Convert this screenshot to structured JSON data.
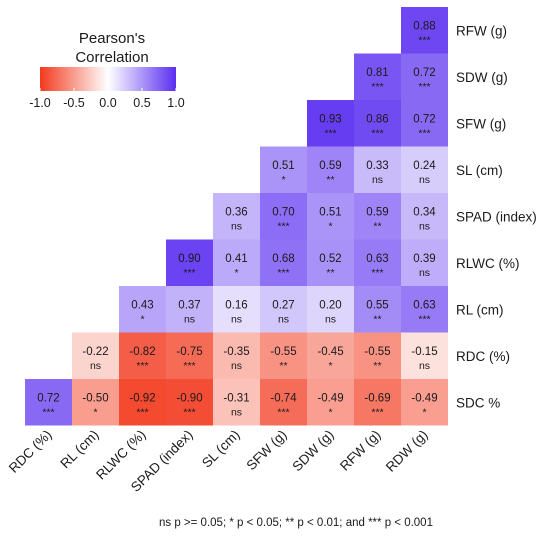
{
  "chart_data": {
    "type": "heatmap",
    "legend": {
      "title_lines": [
        "Pearson's",
        "Correlation"
      ],
      "ticks": [
        "-1.0",
        "-0.5",
        "0.0",
        "0.5",
        "1.0"
      ],
      "tick_values": [
        -1.0,
        -0.5,
        0.0,
        0.5,
        1.0
      ],
      "colors": {
        "low": "#f23a1e",
        "mid": "#ffffff",
        "high": "#5a2ef0"
      },
      "placement": "top-left"
    },
    "row_labels": [
      "RFW (g)",
      "SDW (g)",
      "SFW (g)",
      "SL (cm)",
      "SPAD (index)",
      "RLWC (%)",
      "RL (cm)",
      "RDC (%)",
      "SDC %"
    ],
    "col_labels": [
      "RDC (%)",
      "RL (cm)",
      "RLWC (%)",
      "SPAD (index)",
      "SL (cm)",
      "SFW (g)",
      "SDW (g)",
      "RFW (g)",
      "RDW (g)"
    ],
    "cells": [
      {
        "row": 0,
        "col": 8,
        "value": 0.88,
        "label": "0.88",
        "sig": "***"
      },
      {
        "row": 1,
        "col": 7,
        "value": 0.81,
        "label": "0.81",
        "sig": "***"
      },
      {
        "row": 1,
        "col": 8,
        "value": 0.72,
        "label": "0.72",
        "sig": "***"
      },
      {
        "row": 2,
        "col": 6,
        "value": 0.93,
        "label": "0.93",
        "sig": "***"
      },
      {
        "row": 2,
        "col": 7,
        "value": 0.86,
        "label": "0.86",
        "sig": "***"
      },
      {
        "row": 2,
        "col": 8,
        "value": 0.72,
        "label": "0.72",
        "sig": "***"
      },
      {
        "row": 3,
        "col": 5,
        "value": 0.51,
        "label": "0.51",
        "sig": "*"
      },
      {
        "row": 3,
        "col": 6,
        "value": 0.59,
        "label": "0.59",
        "sig": "**"
      },
      {
        "row": 3,
        "col": 7,
        "value": 0.33,
        "label": "0.33",
        "sig": "ns"
      },
      {
        "row": 3,
        "col": 8,
        "value": 0.24,
        "label": "0.24",
        "sig": "ns"
      },
      {
        "row": 4,
        "col": 4,
        "value": 0.36,
        "label": "0.36",
        "sig": "ns"
      },
      {
        "row": 4,
        "col": 5,
        "value": 0.7,
        "label": "0.70",
        "sig": "***"
      },
      {
        "row": 4,
        "col": 6,
        "value": 0.51,
        "label": "0.51",
        "sig": "*"
      },
      {
        "row": 4,
        "col": 7,
        "value": 0.59,
        "label": "0.59",
        "sig": "**"
      },
      {
        "row": 4,
        "col": 8,
        "value": 0.34,
        "label": "0.34",
        "sig": "ns"
      },
      {
        "row": 5,
        "col": 3,
        "value": 0.9,
        "label": "0.90",
        "sig": "***"
      },
      {
        "row": 5,
        "col": 4,
        "value": 0.41,
        "label": "0.41",
        "sig": "*"
      },
      {
        "row": 5,
        "col": 5,
        "value": 0.68,
        "label": "0.68",
        "sig": "***"
      },
      {
        "row": 5,
        "col": 6,
        "value": 0.52,
        "label": "0.52",
        "sig": "**"
      },
      {
        "row": 5,
        "col": 7,
        "value": 0.63,
        "label": "0.63",
        "sig": "***"
      },
      {
        "row": 5,
        "col": 8,
        "value": 0.39,
        "label": "0.39",
        "sig": "ns"
      },
      {
        "row": 6,
        "col": 2,
        "value": 0.43,
        "label": "0.43",
        "sig": "*"
      },
      {
        "row": 6,
        "col": 3,
        "value": 0.37,
        "label": "0.37",
        "sig": "ns"
      },
      {
        "row": 6,
        "col": 4,
        "value": 0.16,
        "label": "0.16",
        "sig": "ns"
      },
      {
        "row": 6,
        "col": 5,
        "value": 0.27,
        "label": "0.27",
        "sig": "ns"
      },
      {
        "row": 6,
        "col": 6,
        "value": 0.2,
        "label": "0.20",
        "sig": "ns"
      },
      {
        "row": 6,
        "col": 7,
        "value": 0.55,
        "label": "0.55",
        "sig": "**"
      },
      {
        "row": 6,
        "col": 8,
        "value": 0.63,
        "label": "0.63",
        "sig": "***"
      },
      {
        "row": 7,
        "col": 1,
        "value": -0.22,
        "label": "-0.22",
        "sig": "ns"
      },
      {
        "row": 7,
        "col": 2,
        "value": -0.82,
        "label": "-0.82",
        "sig": "***"
      },
      {
        "row": 7,
        "col": 3,
        "value": -0.75,
        "label": "-0.75",
        "sig": "***"
      },
      {
        "row": 7,
        "col": 4,
        "value": -0.35,
        "label": "-0.35",
        "sig": "ns"
      },
      {
        "row": 7,
        "col": 5,
        "value": -0.55,
        "label": "-0.55",
        "sig": "**"
      },
      {
        "row": 7,
        "col": 6,
        "value": -0.45,
        "label": "-0.45",
        "sig": "*"
      },
      {
        "row": 7,
        "col": 7,
        "value": -0.55,
        "label": "-0.55",
        "sig": "**"
      },
      {
        "row": 7,
        "col": 8,
        "value": -0.15,
        "label": "-0.15",
        "sig": "ns"
      },
      {
        "row": 8,
        "col": 0,
        "value": 0.72,
        "label": "0.72",
        "sig": "***"
      },
      {
        "row": 8,
        "col": 1,
        "value": -0.5,
        "label": "-0.50",
        "sig": "*"
      },
      {
        "row": 8,
        "col": 2,
        "value": -0.92,
        "label": "-0.92",
        "sig": "***"
      },
      {
        "row": 8,
        "col": 3,
        "value": -0.9,
        "label": "-0.90",
        "sig": "***"
      },
      {
        "row": 8,
        "col": 4,
        "value": -0.31,
        "label": "-0.31",
        "sig": "ns"
      },
      {
        "row": 8,
        "col": 5,
        "value": -0.74,
        "label": "-0.74",
        "sig": "***"
      },
      {
        "row": 8,
        "col": 6,
        "value": -0.49,
        "label": "-0.49",
        "sig": "*"
      },
      {
        "row": 8,
        "col": 7,
        "value": -0.69,
        "label": "-0.69",
        "sig": "***"
      },
      {
        "row": 8,
        "col": 8,
        "value": -0.49,
        "label": "-0.49",
        "sig": "*"
      }
    ],
    "footnote": "ns p >= 0.05; * p < 0.05; ** p < 0.01; and *** p < 0.001"
  }
}
